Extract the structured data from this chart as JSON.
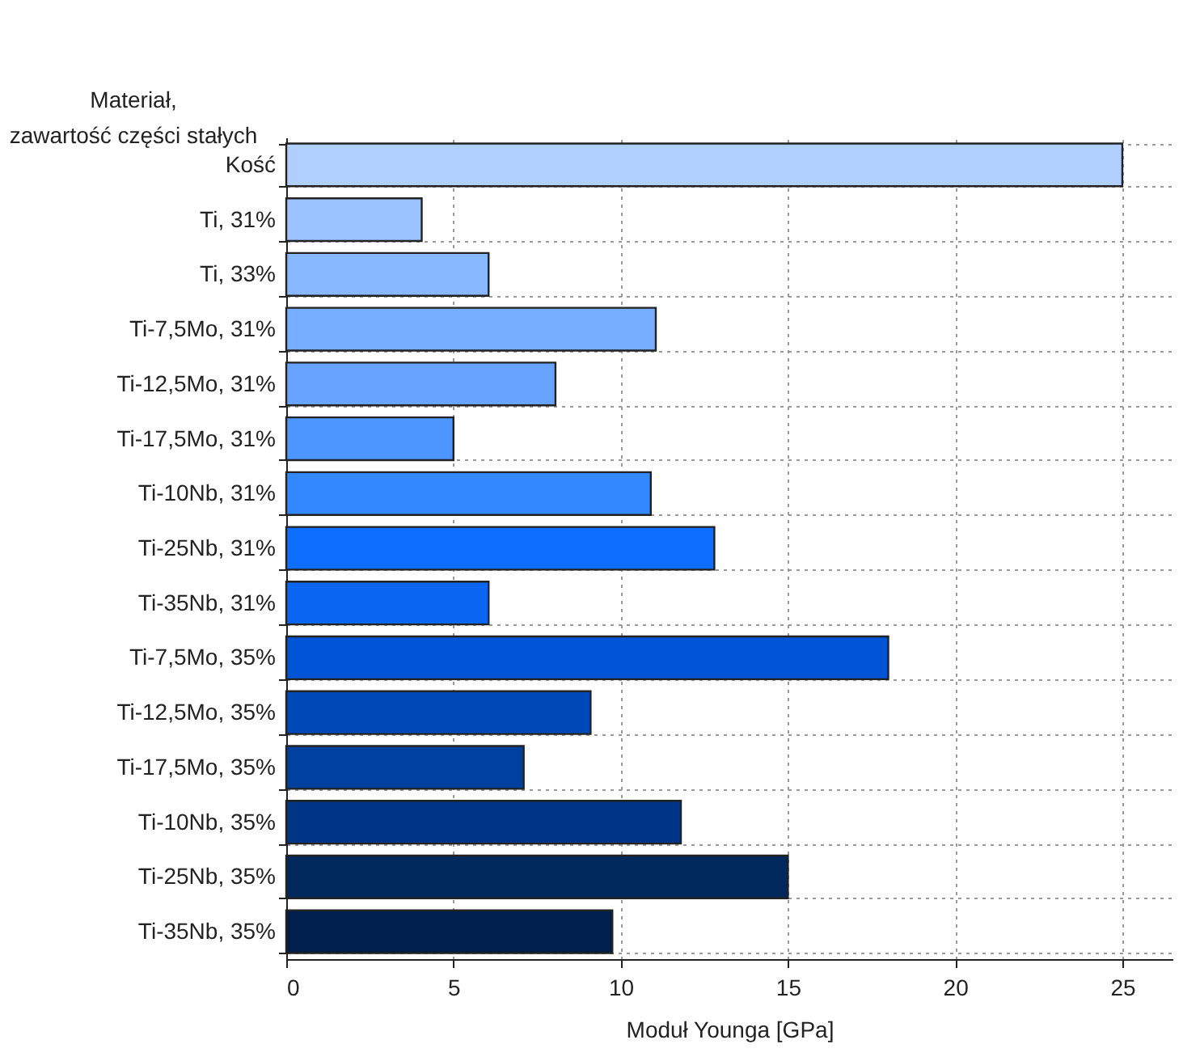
{
  "chart_data": {
    "type": "bar",
    "orientation": "horizontal",
    "ylabel": "Materiał,\nzawartość części stałych",
    "xlabel": "Moduł Younga [GPa]",
    "categories": [
      "Kość",
      "Ti, 31%",
      "Ti, 33%",
      "Ti-7,5Mo, 31%",
      "Ti-12,5Mo, 31%",
      "Ti-17,5Mo, 31%",
      "Ti-10Nb, 31%",
      "Ti-25Nb, 31%",
      "Ti-35Nb, 31%",
      "Ti-7,5Mo, 35%",
      "Ti-12,5Mo, 35%",
      "Ti-17,5Mo, 35%",
      "Ti-10Nb, 35%",
      "Ti-25Nb, 35%",
      "Ti-35Nb, 35%"
    ],
    "values": [
      25,
      4.05,
      6.05,
      11.05,
      8.05,
      5,
      10.9,
      12.8,
      6.05,
      18,
      9.1,
      7.1,
      11.8,
      15,
      9.75
    ],
    "colors": [
      "#b0cfff",
      "#9ac3ff",
      "#88b8ff",
      "#78aeff",
      "#66a3ff",
      "#4d95ff",
      "#3388ff",
      "#0d6eff",
      "#0a66f0",
      "#0055d6",
      "#0049b8",
      "#00409f",
      "#003585",
      "#00285c",
      "#001f4d"
    ],
    "xlim": [
      0,
      26.5
    ],
    "xticks": [
      0,
      5,
      10,
      15,
      20,
      25
    ],
    "grid": true
  }
}
